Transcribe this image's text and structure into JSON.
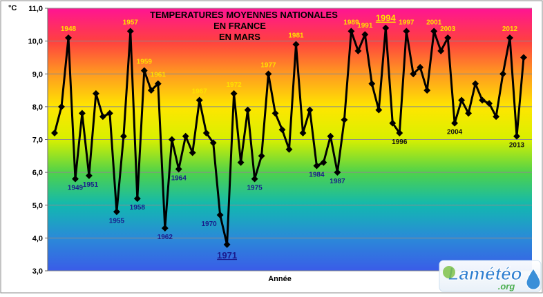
{
  "chart_data": {
    "type": "line",
    "title_lines": [
      "TEMPERATURES MOYENNES NATIONALES",
      "EN FRANCE",
      "EN MARS"
    ],
    "xlabel": "Année",
    "ylabel": "°C",
    "ylim": [
      3.0,
      11.0
    ],
    "yticks": [
      "3,0",
      "4,0",
      "5,0",
      "6,0",
      "7,0",
      "8,0",
      "9,0",
      "10,0",
      "11,0"
    ],
    "grid": true,
    "background_gradient": [
      "#ff1493",
      "#ff4040",
      "#ff9a20",
      "#ffe600",
      "#d8f000",
      "#4fd24a",
      "#12b8b0",
      "#2a8ad8",
      "#3a5ce8"
    ],
    "series": [
      {
        "x": [
          1946,
          1947,
          1948,
          1949,
          1950,
          1951,
          1952,
          1953,
          1954,
          1955,
          1956,
          1957,
          1958,
          1959,
          1960,
          1961,
          1962,
          1963,
          1964,
          1965,
          1966,
          1967,
          1968,
          1969,
          1970,
          1971,
          1972,
          1973,
          1974,
          1975,
          1976,
          1977,
          1978,
          1979,
          1980,
          1981,
          1982,
          1983,
          1984,
          1985,
          1986,
          1987,
          1988,
          1989,
          1990,
          1991,
          1992,
          1993,
          1994,
          1995,
          1996,
          1997,
          1998,
          1999,
          2000,
          2001,
          2002,
          2003,
          2004,
          2005,
          2006,
          2007,
          2008,
          2009,
          2010,
          2011,
          2012,
          2013,
          2014
        ],
        "values": [
          7.2,
          8.0,
          10.1,
          5.8,
          7.8,
          5.9,
          8.4,
          7.7,
          7.8,
          4.8,
          7.1,
          10.3,
          5.2,
          9.1,
          8.5,
          8.7,
          4.3,
          7.0,
          6.1,
          7.1,
          6.6,
          8.2,
          7.2,
          6.9,
          4.7,
          3.8,
          8.4,
          6.3,
          7.9,
          5.8,
          6.5,
          9.0,
          7.8,
          7.3,
          6.7,
          9.9,
          7.2,
          7.9,
          6.2,
          6.3,
          7.1,
          6.0,
          7.6,
          10.3,
          9.7,
          10.2,
          8.7,
          7.9,
          10.4,
          7.5,
          7.2,
          10.3,
          9.0,
          9.2,
          8.5,
          10.3,
          9.7,
          10.1,
          7.5,
          8.2,
          7.8,
          8.7,
          8.2,
          8.1,
          7.7,
          9.0,
          10.1,
          7.1,
          9.5
        ]
      }
    ],
    "annotations": [
      {
        "year": 1948,
        "label": "1948",
        "kind": "warm"
      },
      {
        "year": 1957,
        "label": "1957",
        "kind": "warm"
      },
      {
        "year": 1959,
        "label": "1959",
        "kind": "warm"
      },
      {
        "year": 1961,
        "label": "1961",
        "kind": "warm"
      },
      {
        "year": 1967,
        "label": "1967",
        "kind": "warm"
      },
      {
        "year": 1972,
        "label": "1972",
        "kind": "warm"
      },
      {
        "year": 1977,
        "label": "1977",
        "kind": "warm"
      },
      {
        "year": 1981,
        "label": "1981",
        "kind": "warm"
      },
      {
        "year": 1989,
        "label": "1989",
        "kind": "warm"
      },
      {
        "year": 1991,
        "label": "1991",
        "kind": "warm"
      },
      {
        "year": 1994,
        "label": "1994",
        "kind": "record-warm"
      },
      {
        "year": 1997,
        "label": "1997",
        "kind": "warm"
      },
      {
        "year": 2001,
        "label": "2001",
        "kind": "warm"
      },
      {
        "year": 2003,
        "label": "2003",
        "kind": "warm"
      },
      {
        "year": 2012,
        "label": "2012",
        "kind": "warm"
      },
      {
        "year": 1949,
        "label": "1949",
        "kind": "cold"
      },
      {
        "year": 1951,
        "label": "1951",
        "kind": "cold"
      },
      {
        "year": 1955,
        "label": "1955",
        "kind": "cold"
      },
      {
        "year": 1958,
        "label": "1958",
        "kind": "cold"
      },
      {
        "year": 1962,
        "label": "1962",
        "kind": "cold"
      },
      {
        "year": 1964,
        "label": "1964",
        "kind": "cold"
      },
      {
        "year": 1970,
        "label": "1970",
        "kind": "cold"
      },
      {
        "year": 1971,
        "label": "1971",
        "kind": "record-cold"
      },
      {
        "year": 1975,
        "label": "1975",
        "kind": "cold"
      },
      {
        "year": 1984,
        "label": "1984",
        "kind": "cold"
      },
      {
        "year": 1987,
        "label": "1987",
        "kind": "cold"
      },
      {
        "year": 1996,
        "label": "1996",
        "kind": "neutral"
      },
      {
        "year": 2004,
        "label": "2004",
        "kind": "neutral"
      },
      {
        "year": 2013,
        "label": "2013",
        "kind": "neutral"
      }
    ],
    "colors": {
      "warm_label": "#ffe000",
      "cold_label": "#1a1a8c",
      "neutral_label": "#111111",
      "line": "#000000",
      "grid": "#8c8c8c"
    }
  },
  "logo": {
    "text": "Lamétéo",
    "suffix": ".org",
    "color": "#2f7fd0"
  }
}
